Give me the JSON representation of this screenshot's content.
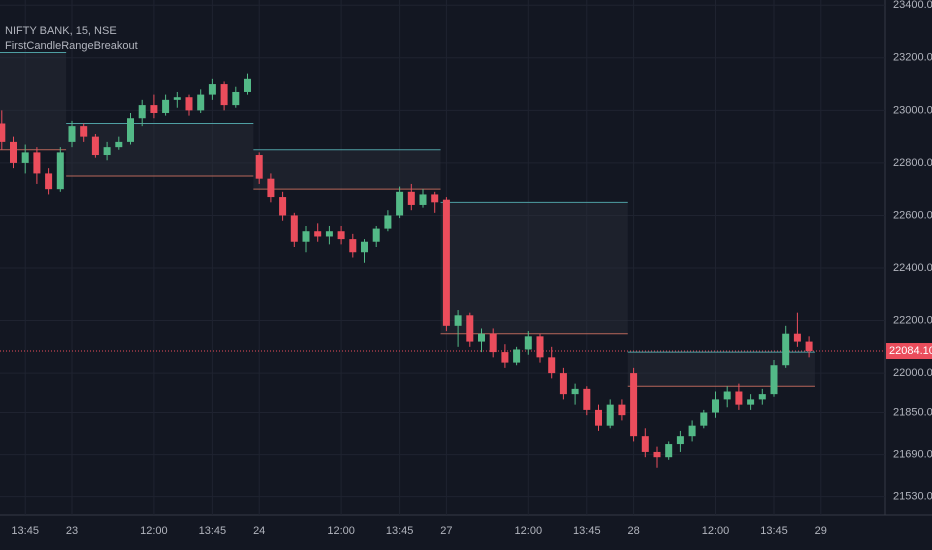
{
  "chart_data": {
    "type": "candlestick",
    "title": "NIFTY BANK, 15, NSE",
    "subtitle": "FirstCandleRangeBreakout",
    "categories": [
      null,
      null,
      "13:45",
      null,
      null,
      null,
      "23",
      null,
      null,
      null,
      null,
      null,
      null,
      "12:00",
      null,
      null,
      null,
      null,
      "13:45",
      null,
      null,
      null,
      "24",
      null,
      null,
      null,
      null,
      null,
      null,
      "12:00",
      null,
      null,
      null,
      null,
      "13:45",
      null,
      null,
      null,
      "27",
      null,
      null,
      null,
      null,
      null,
      null,
      "12:00",
      null,
      null,
      null,
      null,
      "13:45",
      null,
      null,
      null,
      "28",
      null,
      null,
      null,
      null,
      null,
      null,
      "12:00",
      null,
      null,
      null,
      null,
      "13:45",
      null,
      null,
      null,
      "29"
    ],
    "open": [
      22950,
      22880,
      22800,
      22840,
      22760,
      22700,
      22880,
      22940,
      22900,
      22830,
      22860,
      22880,
      22970,
      23020,
      22990,
      23040,
      23050,
      23000,
      23060,
      23100,
      23020,
      23070,
      22830,
      22740,
      22670,
      22600,
      22500,
      22540,
      22520,
      22540,
      22510,
      22460,
      22500,
      22550,
      22600,
      22690,
      22640,
      22680,
      22660,
      22180,
      22220,
      22120,
      22150,
      22080,
      22040,
      22090,
      22140,
      22060,
      22000,
      21920,
      21940,
      21860,
      21800,
      21880,
      22000,
      21760,
      21700,
      21680,
      21730,
      21760,
      21800,
      21850,
      21900,
      21930,
      21880,
      21900,
      21920,
      22030,
      22150,
      22120,
      null
    ],
    "high": [
      23000,
      22900,
      22870,
      22860,
      22780,
      22860,
      22960,
      22950,
      22910,
      22880,
      22900,
      22990,
      23040,
      23060,
      23060,
      23070,
      23060,
      23080,
      23120,
      23110,
      23090,
      23140,
      22840,
      22760,
      22690,
      22610,
      22560,
      22570,
      22560,
      22560,
      22530,
      22510,
      22560,
      22620,
      22710,
      22720,
      22700,
      22690,
      22670,
      22240,
      22230,
      22170,
      22170,
      22110,
      22100,
      22160,
      22150,
      22100,
      22020,
      21960,
      21950,
      21880,
      21900,
      21900,
      22020,
      21790,
      21720,
      21740,
      21780,
      21820,
      21860,
      21930,
      21950,
      21960,
      21920,
      21940,
      22050,
      22180,
      22230,
      22140,
      null
    ],
    "low": [
      22850,
      22780,
      22760,
      22720,
      22680,
      22690,
      22860,
      22880,
      22820,
      22810,
      22850,
      22870,
      22940,
      22970,
      22980,
      23010,
      22980,
      22990,
      23040,
      23000,
      23010,
      23060,
      22720,
      22650,
      22580,
      22480,
      22460,
      22500,
      22490,
      22490,
      22440,
      22420,
      22480,
      22540,
      22590,
      22620,
      22630,
      22610,
      22160,
      22100,
      22100,
      22080,
      22060,
      22020,
      22030,
      22070,
      22040,
      21980,
      21900,
      21880,
      21840,
      21780,
      21790,
      21820,
      21740,
      21680,
      21640,
      21670,
      21700,
      21740,
      21790,
      21830,
      21870,
      21860,
      21860,
      21880,
      21910,
      22020,
      22100,
      22060,
      null
    ],
    "close": [
      22880,
      22800,
      22840,
      22760,
      22700,
      22840,
      22940,
      22900,
      22830,
      22860,
      22880,
      22970,
      23020,
      22990,
      23040,
      23050,
      23000,
      23060,
      23100,
      23020,
      23070,
      23120,
      22740,
      22670,
      22600,
      22500,
      22540,
      22520,
      22540,
      22510,
      22460,
      22500,
      22550,
      22600,
      22690,
      22640,
      22680,
      22650,
      22180,
      22220,
      22120,
      22150,
      22080,
      22040,
      22090,
      22140,
      22060,
      22000,
      21920,
      21940,
      21860,
      21800,
      21880,
      21840,
      21760,
      21700,
      21680,
      21730,
      21760,
      21800,
      21850,
      21900,
      21930,
      21880,
      21900,
      21920,
      22030,
      22150,
      22120,
      22084.1,
      null
    ],
    "up_color": "#53b987",
    "down_color": "#eb4d5c",
    "ranges": [
      {
        "start": 0,
        "end": 5,
        "high": 23220,
        "low": 22850
      },
      {
        "start": 6,
        "end": 21,
        "high": 22950,
        "low": 22750
      },
      {
        "start": 22,
        "end": 37,
        "high": 22850,
        "low": 22700
      },
      {
        "start": 38,
        "end": 53,
        "high": 22650,
        "low": 22150
      },
      {
        "start": 54,
        "end": 69,
        "high": 22080,
        "low": 21950
      }
    ],
    "range_high_color": "#4f9fa3",
    "range_low_color": "#b8675a",
    "last_price": {
      "value": 22084.1,
      "label": "22084.10"
    },
    "ylim": [
      21460,
      23420
    ],
    "yticks": [
      {
        "value": 21530,
        "label": "21530.00"
      },
      {
        "value": 21690,
        "label": "21690.00"
      },
      {
        "value": 21850,
        "label": "21850.00"
      },
      {
        "value": 22000,
        "label": "22000.00"
      },
      {
        "value": 22200,
        "label": "22200.00"
      },
      {
        "value": 22400,
        "label": "22400.00"
      },
      {
        "value": 22600,
        "label": "22600.00"
      },
      {
        "value": 22800,
        "label": "22800.00"
      },
      {
        "value": 23000,
        "label": "23000.00"
      },
      {
        "value": 23200,
        "label": "23200.00"
      },
      {
        "value": 23400,
        "label": "23400.00"
      }
    ],
    "grid": true
  }
}
